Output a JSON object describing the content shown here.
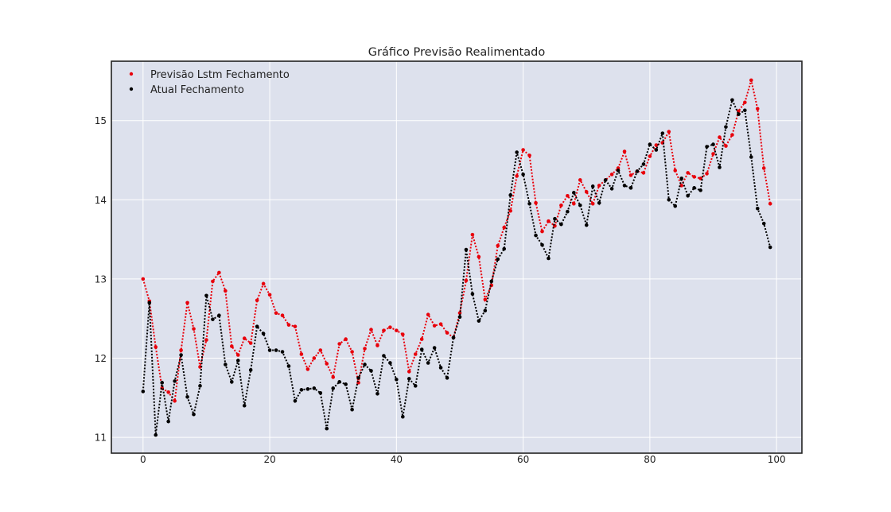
{
  "chart_data": {
    "type": "line",
    "title": "Gráfico Previsão Realimentado",
    "xlabel": "",
    "ylabel": "",
    "xlim": [
      -5,
      104
    ],
    "ylim": [
      10.8,
      15.75
    ],
    "xticks": [
      0,
      20,
      40,
      60,
      80,
      100
    ],
    "yticks": [
      11,
      12,
      13,
      14,
      15
    ],
    "grid": true,
    "legend_position": "top-left",
    "line_style": "dotted",
    "series": [
      {
        "name": "Previsão Lstm Fechamento",
        "color": "#e8000b",
        "values": [
          13.0,
          12.72,
          12.14,
          11.62,
          11.57,
          11.46,
          12.1,
          12.7,
          12.37,
          11.89,
          12.23,
          12.97,
          13.08,
          12.85,
          12.15,
          12.04,
          12.25,
          12.19,
          12.73,
          12.94,
          12.8,
          12.57,
          12.54,
          12.42,
          12.4,
          12.05,
          11.86,
          12.0,
          12.1,
          11.93,
          11.76,
          12.18,
          12.24,
          12.08,
          11.69,
          12.12,
          12.36,
          12.16,
          12.35,
          12.39,
          12.35,
          12.3,
          11.83,
          12.05,
          12.24,
          12.55,
          12.41,
          12.43,
          12.32,
          12.26,
          12.57,
          12.98,
          13.56,
          13.28,
          12.74,
          12.92,
          13.42,
          13.65,
          13.86,
          14.3,
          14.63,
          14.56,
          13.96,
          13.6,
          13.73,
          13.67,
          13.93,
          14.05,
          13.95,
          14.25,
          14.1,
          13.95,
          14.18,
          14.25,
          14.32,
          14.4,
          14.61,
          14.31,
          14.36,
          14.34,
          14.55,
          14.69,
          14.72,
          14.86,
          14.37,
          14.18,
          14.34,
          14.29,
          14.27,
          14.33,
          14.58,
          14.79,
          14.68,
          14.82,
          15.12,
          15.23,
          15.51,
          15.15,
          14.4,
          13.95
        ]
      },
      {
        "name": "Atual Fechamento",
        "color": "#000000",
        "values": [
          11.58,
          12.7,
          11.03,
          11.69,
          11.2,
          11.71,
          12.04,
          11.51,
          11.29,
          11.65,
          12.79,
          12.49,
          12.54,
          11.92,
          11.7,
          11.97,
          11.4,
          11.85,
          12.4,
          12.31,
          12.1,
          12.1,
          12.08,
          11.9,
          11.46,
          11.6,
          11.61,
          11.62,
          11.56,
          11.11,
          11.62,
          11.7,
          11.67,
          11.35,
          11.75,
          11.92,
          11.84,
          11.55,
          12.03,
          11.94,
          11.73,
          11.26,
          11.74,
          11.65,
          12.11,
          11.94,
          12.13,
          11.88,
          11.75,
          12.26,
          12.52,
          13.37,
          12.81,
          12.47,
          12.6,
          12.97,
          13.25,
          13.38,
          14.06,
          14.6,
          14.32,
          13.95,
          13.55,
          13.43,
          13.26,
          13.76,
          13.69,
          13.85,
          14.09,
          13.93,
          13.68,
          14.17,
          13.96,
          14.25,
          14.14,
          14.37,
          14.18,
          14.15,
          14.36,
          14.45,
          14.7,
          14.63,
          14.84,
          14.0,
          13.92,
          14.27,
          14.05,
          14.15,
          14.12,
          14.67,
          14.7,
          14.41,
          14.92,
          15.26,
          15.08,
          15.13,
          14.54,
          13.89,
          13.7,
          13.4
        ]
      }
    ]
  }
}
